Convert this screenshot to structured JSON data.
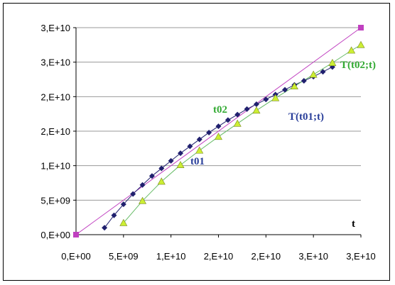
{
  "chart_data": {
    "type": "scatter",
    "xlabel": "t",
    "ylabel": "",
    "xlim": [
      0,
      30000000000
    ],
    "ylim": [
      0,
      30000000000
    ],
    "x_tick_labels": [
      "0,E+00",
      "5,E+09",
      "1,E+10",
      "2,E+10",
      "2,E+10",
      "3,E+10",
      "3,E+10"
    ],
    "y_tick_labels": [
      "0,E+00",
      "5,E+09",
      "1,E+10",
      "2,E+10",
      "2,E+10",
      "3,E+10",
      "3,E+10"
    ],
    "grid": "horizontal",
    "legend": "none",
    "annotations": [
      {
        "text": "t02",
        "color": "#33aa33"
      },
      {
        "text": "t01",
        "color": "#2a3f9a"
      },
      {
        "text": "T(t02;t)",
        "color": "#33aa33"
      },
      {
        "text": "T(t01;t)",
        "color": "#2a3f9a"
      }
    ],
    "series": [
      {
        "color": "#c040c0",
        "marker": "square",
        "x": [
          0,
          30000000000
        ],
        "y": [
          0,
          30000000000
        ]
      },
      {
        "color": "#20206e",
        "marker": "diamond",
        "x": [
          3000000000,
          4000000000,
          5000000000,
          6000000000,
          7000000000,
          8000000000,
          9000000000,
          10000000000,
          11000000000,
          12000000000,
          13000000000,
          14000000000,
          15000000000,
          16000000000,
          17000000000,
          18000000000,
          19000000000,
          20000000000,
          21000000000,
          22000000000,
          23000000000,
          24000000000,
          25000000000,
          26000000000,
          27000000000
        ],
        "y": [
          1000000000,
          2800000000,
          4400000000,
          5900000000,
          7200000000,
          8500000000,
          9600000000,
          10700000000,
          11800000000,
          12800000000,
          13800000000,
          14800000000,
          15700000000,
          16600000000,
          17400000000,
          18200000000,
          18900000000,
          19600000000,
          20300000000,
          21000000000,
          21700000000,
          22300000000,
          22900000000,
          23600000000,
          24300000000
        ]
      },
      {
        "color": "#ccee33",
        "marker": "triangle",
        "x": [
          5000000000,
          7000000000,
          9000000000,
          11000000000,
          13000000000,
          15000000000,
          17000000000,
          19000000000,
          21000000000,
          23000000000,
          25000000000,
          27000000000,
          29000000000,
          30000000000
        ],
        "y": [
          1700000000,
          4900000000,
          7700000000,
          10100000000,
          12200000000,
          14200000000,
          16100000000,
          18000000000,
          19800000000,
          21500000000,
          23200000000,
          24900000000,
          26700000000,
          27500000000
        ]
      }
    ]
  }
}
